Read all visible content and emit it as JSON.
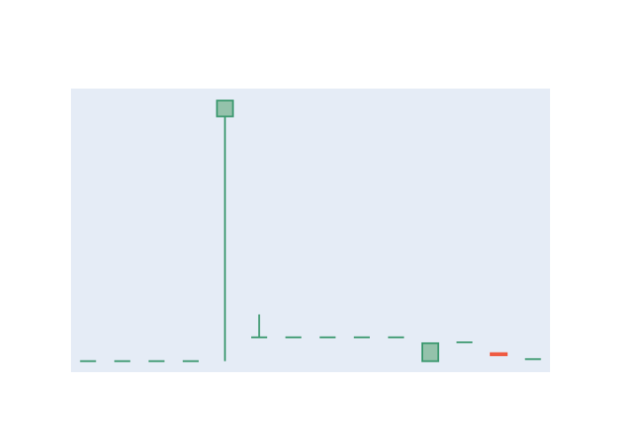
{
  "chart_data": {
    "type": "candlestick",
    "title": "",
    "xlabel": "",
    "ylabel": "",
    "x": [
      1,
      2,
      3,
      4,
      5,
      6,
      7,
      8,
      9,
      10,
      11,
      12,
      13,
      14
    ],
    "open": [
      0.9,
      0.9,
      0.9,
      0.9,
      13.2,
      2.1,
      2.1,
      2.1,
      2.1,
      2.1,
      0.9,
      1.85,
      1.3,
      1.0
    ],
    "high": [
      0.9,
      0.9,
      0.9,
      0.9,
      14.0,
      3.25,
      2.1,
      2.1,
      2.1,
      2.1,
      1.8,
      1.85,
      1.3,
      1.0
    ],
    "low": [
      0.9,
      0.9,
      0.9,
      0.9,
      0.9,
      2.1,
      2.1,
      2.1,
      2.1,
      2.1,
      0.9,
      1.85,
      1.2,
      1.0
    ],
    "close": [
      0.9,
      0.9,
      0.9,
      0.9,
      14.0,
      2.1,
      2.1,
      2.1,
      2.1,
      2.1,
      1.8,
      1.85,
      1.2,
      1.0
    ],
    "xlim": [
      0.5,
      14.5
    ],
    "ylim": [
      0.35,
      14.6
    ],
    "grid": false,
    "colors": {
      "increasing_line": "#3D9970",
      "increasing_fill": "#94C2AB",
      "decreasing_line": "#EF553B",
      "decreasing_fill": "#F08E7E",
      "plot_background": "#E5ECF6",
      "paper_background": "#FFFFFF"
    }
  }
}
